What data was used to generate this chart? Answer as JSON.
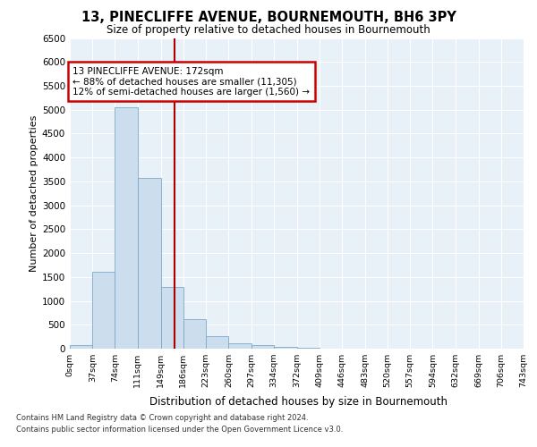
{
  "title": "13, PINECLIFFE AVENUE, BOURNEMOUTH, BH6 3PY",
  "subtitle": "Size of property relative to detached houses in Bournemouth",
  "xlabel": "Distribution of detached houses by size in Bournemouth",
  "ylabel": "Number of detached properties",
  "bar_color": "#ccdded",
  "bar_edge_color": "#7aaac8",
  "background_color": "#e8f0f8",
  "grid_color": "#ffffff",
  "vline_x": 172,
  "vline_color": "#aa0000",
  "annotation_text": "13 PINECLIFFE AVENUE: 172sqm\n← 88% of detached houses are smaller (11,305)\n12% of semi-detached houses are larger (1,560) →",
  "annotation_box_color": "#cc0000",
  "bin_edges": [
    0,
    37,
    74,
    111,
    149,
    186,
    223,
    260,
    297,
    334,
    372,
    409,
    446,
    483,
    520,
    557,
    594,
    632,
    669,
    706,
    743
  ],
  "bar_heights": [
    70,
    1600,
    5050,
    3580,
    1300,
    620,
    270,
    120,
    75,
    45,
    20,
    5,
    0,
    0,
    0,
    0,
    0,
    0,
    0,
    0
  ],
  "ylim": [
    0,
    6500
  ],
  "yticks": [
    0,
    500,
    1000,
    1500,
    2000,
    2500,
    3000,
    3500,
    4000,
    4500,
    5000,
    5500,
    6000,
    6500
  ],
  "xtick_labels": [
    "0sqm",
    "37sqm",
    "74sqm",
    "111sqm",
    "149sqm",
    "186sqm",
    "223sqm",
    "260sqm",
    "297sqm",
    "334sqm",
    "372sqm",
    "409sqm",
    "446sqm",
    "483sqm",
    "520sqm",
    "557sqm",
    "594sqm",
    "632sqm",
    "669sqm",
    "706sqm",
    "743sqm"
  ],
  "footer_line1": "Contains HM Land Registry data © Crown copyright and database right 2024.",
  "footer_line2": "Contains public sector information licensed under the Open Government Licence v3.0."
}
